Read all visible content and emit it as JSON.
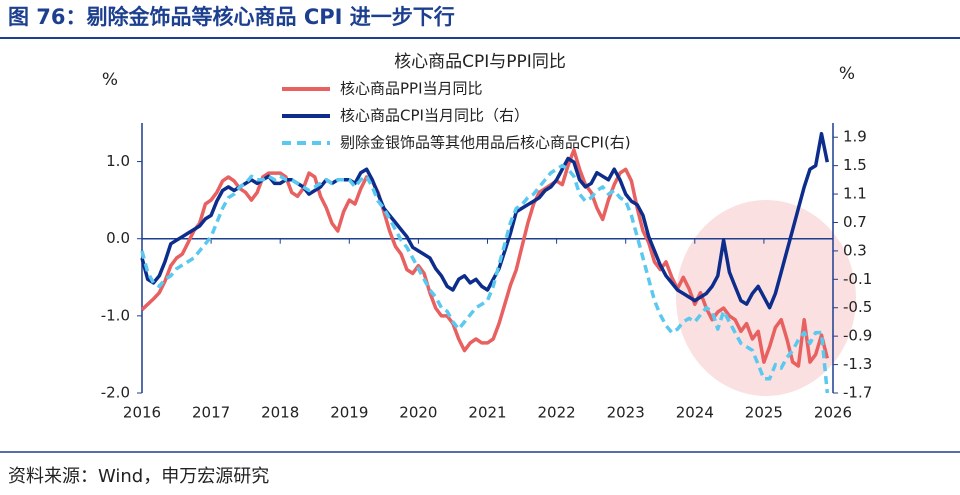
{
  "header": {
    "title": "图 76：剔除金饰品等核心商品 CPI 进一步下行"
  },
  "source": "资料来源：Wind，申万宏源研究",
  "chart_data": {
    "type": "line",
    "title": "核心商品CPI与PPI同比",
    "y_label": "%",
    "y2_label": "%",
    "x": [
      2016,
      2016.083,
      2016.167,
      2016.25,
      2016.333,
      2016.417,
      2016.5,
      2016.583,
      2016.667,
      2016.75,
      2016.833,
      2016.917,
      2017,
      2017.083,
      2017.167,
      2017.25,
      2017.333,
      2017.417,
      2017.5,
      2017.583,
      2017.667,
      2017.75,
      2017.833,
      2017.917,
      2018,
      2018.083,
      2018.167,
      2018.25,
      2018.333,
      2018.417,
      2018.5,
      2018.583,
      2018.667,
      2018.75,
      2018.833,
      2018.917,
      2019,
      2019.083,
      2019.167,
      2019.25,
      2019.333,
      2019.417,
      2019.5,
      2019.583,
      2019.667,
      2019.75,
      2019.833,
      2019.917,
      2020,
      2020.083,
      2020.167,
      2020.25,
      2020.333,
      2020.417,
      2020.5,
      2020.583,
      2020.667,
      2020.75,
      2020.833,
      2020.917,
      2021,
      2021.083,
      2021.167,
      2021.25,
      2021.333,
      2021.417,
      2021.5,
      2021.583,
      2021.667,
      2021.75,
      2021.833,
      2021.917,
      2022,
      2022.083,
      2022.167,
      2022.25,
      2022.333,
      2022.417,
      2022.5,
      2022.583,
      2022.667,
      2022.75,
      2022.833,
      2022.917,
      2023,
      2023.083,
      2023.167,
      2023.25,
      2023.333,
      2023.417,
      2023.5,
      2023.583,
      2023.667,
      2023.75,
      2023.833,
      2023.917,
      2024,
      2024.083,
      2024.167,
      2024.25,
      2024.333,
      2024.417,
      2024.5,
      2024.583,
      2024.667,
      2024.75,
      2024.833,
      2024.917,
      2025,
      2025.083,
      2025.167,
      2025.25,
      2025.333,
      2025.417,
      2025.5,
      2025.583,
      2025.667,
      2025.75,
      2025.833,
      2025.917
    ],
    "xlim": [
      2016,
      2026
    ],
    "xticks": [
      2016,
      2017,
      2018,
      2019,
      2020,
      2021,
      2022,
      2023,
      2024,
      2025,
      2026
    ],
    "ylim": [
      -2,
      1.5
    ],
    "yticks": [
      {
        "value": 1,
        "label": "1.0"
      },
      {
        "value": 0,
        "label": "0.0"
      },
      {
        "value": -1,
        "label": "-1.0"
      },
      {
        "value": -2,
        "label": "-2.0"
      }
    ],
    "y2lim": [
      -1.7,
      2.1
    ],
    "y2ticks": [
      1.9,
      1.5,
      1.1,
      0.7,
      0.3,
      -0.1,
      -0.5,
      -0.9,
      -1.3,
      -1.7
    ],
    "series": [
      {
        "name": "核心商品PPI当月同比",
        "color": "#e8605f",
        "dashed": false,
        "axis": "y",
        "values": [
          -0.92,
          -0.85,
          -0.78,
          -0.7,
          -0.55,
          -0.35,
          -0.25,
          -0.2,
          -0.05,
          0.1,
          0.2,
          0.45,
          0.5,
          0.6,
          0.75,
          0.8,
          0.75,
          0.65,
          0.6,
          0.5,
          0.6,
          0.8,
          0.85,
          0.85,
          0.85,
          0.8,
          0.6,
          0.55,
          0.65,
          0.85,
          0.8,
          0.55,
          0.4,
          0.2,
          0.1,
          0.35,
          0.5,
          0.45,
          0.65,
          0.8,
          0.75,
          0.6,
          0.35,
          0.1,
          -0.1,
          -0.2,
          -0.4,
          -0.45,
          -0.35,
          -0.45,
          -0.7,
          -0.9,
          -1.0,
          -1.0,
          -1.1,
          -1.3,
          -1.45,
          -1.35,
          -1.3,
          -1.35,
          -1.35,
          -1.3,
          -1.1,
          -0.85,
          -0.6,
          -0.4,
          -0.1,
          0.2,
          0.45,
          0.6,
          0.65,
          0.7,
          0.75,
          0.7,
          0.95,
          1.15,
          0.9,
          0.7,
          0.6,
          0.4,
          0.25,
          0.5,
          0.7,
          0.85,
          0.9,
          0.75,
          0.4,
          0.1,
          -0.05,
          -0.3,
          -0.4,
          -0.3,
          -0.5,
          -0.65,
          -0.5,
          -0.65,
          -0.85,
          -0.7,
          -0.9,
          -1.05,
          -0.95,
          -0.9,
          -1.0,
          -1.05,
          -1.2,
          -1.1,
          -1.3,
          -1.2,
          -1.6,
          -1.4,
          -1.15,
          -1.05,
          -1.3,
          -1.6,
          -1.65,
          -1.05,
          -1.6,
          -1.5,
          -1.25,
          -1.55
        ]
      },
      {
        "name": "核心商品CPI当月同比（右）",
        "color": "#0d2d8c",
        "dashed": false,
        "axis": "y2",
        "values": [
          0.2,
          -0.1,
          -0.15,
          -0.05,
          0.15,
          0.4,
          0.45,
          0.5,
          0.55,
          0.6,
          0.65,
          0.75,
          0.8,
          1.0,
          1.15,
          1.2,
          1.15,
          1.2,
          1.25,
          1.3,
          1.25,
          1.3,
          1.35,
          1.25,
          1.25,
          1.3,
          1.3,
          1.25,
          1.2,
          1.1,
          1.15,
          1.2,
          1.3,
          1.25,
          1.3,
          1.3,
          1.3,
          1.25,
          1.4,
          1.45,
          1.3,
          1.1,
          0.9,
          0.8,
          0.7,
          0.6,
          0.5,
          0.35,
          0.3,
          0.25,
          0.2,
          0.05,
          -0.05,
          -0.2,
          -0.25,
          -0.1,
          -0.05,
          -0.15,
          -0.1,
          -0.2,
          -0.25,
          -0.1,
          0.05,
          0.3,
          0.55,
          0.85,
          0.9,
          0.95,
          1.0,
          1.05,
          1.15,
          1.2,
          1.3,
          1.45,
          1.6,
          1.55,
          1.3,
          1.2,
          1.25,
          1.4,
          1.35,
          1.3,
          1.45,
          1.3,
          1.1,
          1.0,
          0.95,
          0.8,
          0.5,
          0.3,
          0.1,
          -0.05,
          -0.15,
          -0.25,
          -0.3,
          -0.35,
          -0.4,
          -0.35,
          -0.3,
          -0.2,
          -0.05,
          0.45,
          0.0,
          -0.2,
          -0.4,
          -0.45,
          -0.3,
          -0.2,
          -0.35,
          -0.5,
          -0.3,
          0.0,
          0.3,
          0.6,
          0.9,
          1.2,
          1.45,
          1.5,
          1.95,
          1.55
        ]
      },
      {
        "name": "剔除金银饰品等其他用品后核心商品CPI(右)",
        "color": "#5bc8f0",
        "dashed": true,
        "axis": "y2",
        "values": [
          0.3,
          0.0,
          -0.15,
          -0.2,
          -0.1,
          -0.05,
          0.05,
          0.1,
          0.15,
          0.2,
          0.3,
          0.4,
          0.5,
          0.7,
          0.9,
          1.05,
          1.1,
          1.2,
          1.25,
          1.35,
          1.3,
          1.3,
          1.35,
          1.3,
          1.35,
          1.3,
          1.3,
          1.25,
          1.2,
          1.15,
          1.2,
          1.25,
          1.3,
          1.25,
          1.3,
          1.3,
          1.3,
          1.2,
          1.3,
          1.35,
          1.2,
          1.0,
          0.9,
          0.75,
          0.6,
          0.45,
          0.35,
          0.2,
          0.05,
          -0.1,
          -0.25,
          -0.35,
          -0.5,
          -0.55,
          -0.7,
          -0.8,
          -0.7,
          -0.6,
          -0.5,
          -0.45,
          -0.4,
          -0.2,
          0.1,
          0.4,
          0.7,
          0.9,
          0.95,
          1.05,
          1.1,
          1.2,
          1.3,
          1.4,
          1.45,
          1.5,
          1.45,
          1.35,
          1.1,
          1.0,
          1.05,
          1.15,
          1.2,
          1.1,
          1.15,
          1.05,
          1.0,
          0.8,
          0.5,
          0.2,
          -0.1,
          -0.4,
          -0.6,
          -0.75,
          -0.85,
          -0.8,
          -0.7,
          -0.65,
          -0.7,
          -0.6,
          -0.5,
          -0.55,
          -0.8,
          -0.55,
          -0.7,
          -0.85,
          -1.0,
          -1.05,
          -1.1,
          -1.3,
          -1.5,
          -1.5,
          -1.3,
          -1.35,
          -1.2,
          -1.1,
          -0.95,
          -0.85,
          -1.0,
          -0.85,
          -0.85,
          -1.7
        ]
      }
    ]
  }
}
